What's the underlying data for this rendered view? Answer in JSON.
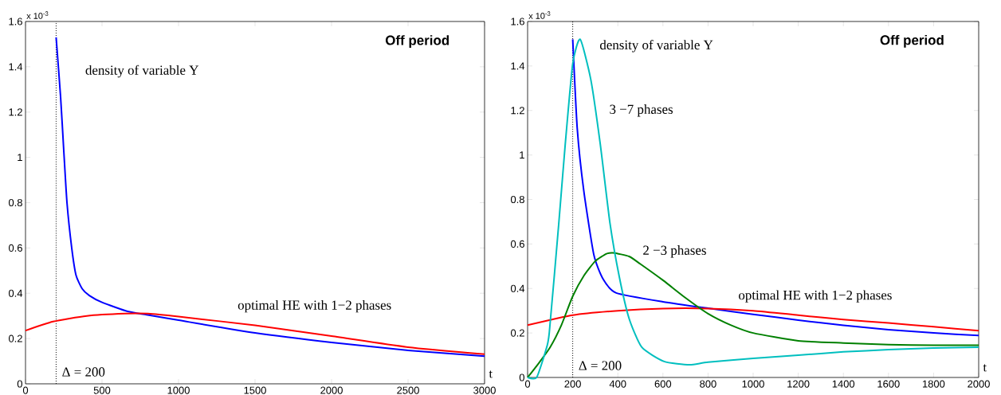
{
  "chart_data": [
    {
      "type": "line",
      "title": "Off period",
      "xlabel": "t",
      "xlim": [
        0,
        3000
      ],
      "xticks": [
        0,
        500,
        1000,
        1500,
        2000,
        2500,
        3000
      ],
      "ylim": [
        0,
        1.6
      ],
      "yticks": [
        0,
        0.2,
        0.4,
        0.6,
        0.8,
        1,
        1.2,
        1.4,
        1.6
      ],
      "series": [
        {
          "color": "#0000ff",
          "x": [
            200,
            229,
            250,
            271,
            302,
            330,
            370,
            417,
            500,
            667,
            792,
            1000,
            1500,
            2000,
            2500,
            3000
          ],
          "values": [
            1.53,
            1.27,
            1.03,
            0.8,
            0.6,
            0.48,
            0.42,
            0.39,
            0.36,
            0.32,
            0.305,
            0.281,
            0.225,
            0.183,
            0.148,
            0.122
          ]
        },
        {
          "color": "#ff0000",
          "x": [
            0,
            180,
            400,
            650,
            800,
            1000,
            1500,
            2000,
            2500,
            3000
          ],
          "values": [
            0.235,
            0.275,
            0.3,
            0.31,
            0.31,
            0.297,
            0.258,
            0.211,
            0.162,
            0.131
          ]
        }
      ],
      "ref_lines": [
        {
          "axis": "x",
          "value": 200,
          "label": "Δ =  200",
          "color": "#000000",
          "line_style": "dotted"
        }
      ],
      "annotations": [
        "x 10$^{-3}$",
        "density of variable Y",
        "optimal HE with 1−2 phases"
      ]
    },
    {
      "type": "line",
      "title": "Off period",
      "xlabel": "t",
      "xlim": [
        0,
        2000
      ],
      "xticks": [
        0,
        200,
        400,
        600,
        800,
        1000,
        1200,
        1400,
        1600,
        1800,
        2000
      ],
      "ylim": [
        0,
        1.6
      ],
      "yticks": [
        0,
        0.2,
        0.4,
        0.6,
        0.8,
        1,
        1.2,
        1.4,
        1.6
      ],
      "series": [
        {
          "color": "#0000ff",
          "x": [
            200,
            220,
            249,
            294,
            336,
            393,
            600,
            800,
            1000,
            1200,
            1400,
            1600,
            1800,
            2000
          ],
          "values": [
            1.52,
            1.12,
            0.84,
            0.55,
            0.44,
            0.38,
            0.34,
            0.311,
            0.284,
            0.258,
            0.234,
            0.215,
            0.2,
            0.189
          ]
        },
        {
          "color": "#ff0000",
          "x": [
            0,
            200,
            400,
            600,
            800,
            1000,
            1200,
            1400,
            1600,
            1800,
            2000
          ],
          "values": [
            0.235,
            0.28,
            0.3,
            0.31,
            0.31,
            0.3,
            0.28,
            0.26,
            0.245,
            0.228,
            0.21
          ]
        },
        {
          "color": "#008000",
          "x": [
            0,
            50,
            100,
            150,
            200,
            250,
            300,
            350,
            380,
            450,
            500,
            600,
            700,
            800,
            900,
            1000,
            1200,
            1400,
            1600,
            1800,
            2000
          ],
          "values": [
            0,
            0.065,
            0.136,
            0.236,
            0.365,
            0.458,
            0.523,
            0.556,
            0.56,
            0.544,
            0.51,
            0.437,
            0.358,
            0.287,
            0.236,
            0.2,
            0.165,
            0.155,
            0.148,
            0.145,
            0.145
          ]
        },
        {
          "color": "#00bfbf",
          "x": [
            0,
            40,
            80,
            96,
            138,
            167,
            200,
            233,
            280,
            322,
            365,
            407,
            450,
            506,
            605,
            718,
            800,
            1000,
            1200,
            1400,
            1600,
            1800,
            2000
          ],
          "values": [
            0,
            0,
            0.12,
            0.2,
            0.69,
            1.05,
            1.41,
            1.52,
            1.34,
            1.05,
            0.695,
            0.45,
            0.265,
            0.136,
            0.072,
            0.057,
            0.069,
            0.086,
            0.1,
            0.115,
            0.125,
            0.132,
            0.136
          ]
        }
      ],
      "ref_lines": [
        {
          "axis": "x",
          "value": 200,
          "label": "Δ =  200",
          "color": "#000000",
          "line_style": "dotted"
        }
      ],
      "annotations": [
        "x 10$^{-3}$",
        "density of variable Y",
        "3 −7 phases",
        "2 −3 phases",
        "optimal HE with 1−2 phases"
      ]
    }
  ]
}
